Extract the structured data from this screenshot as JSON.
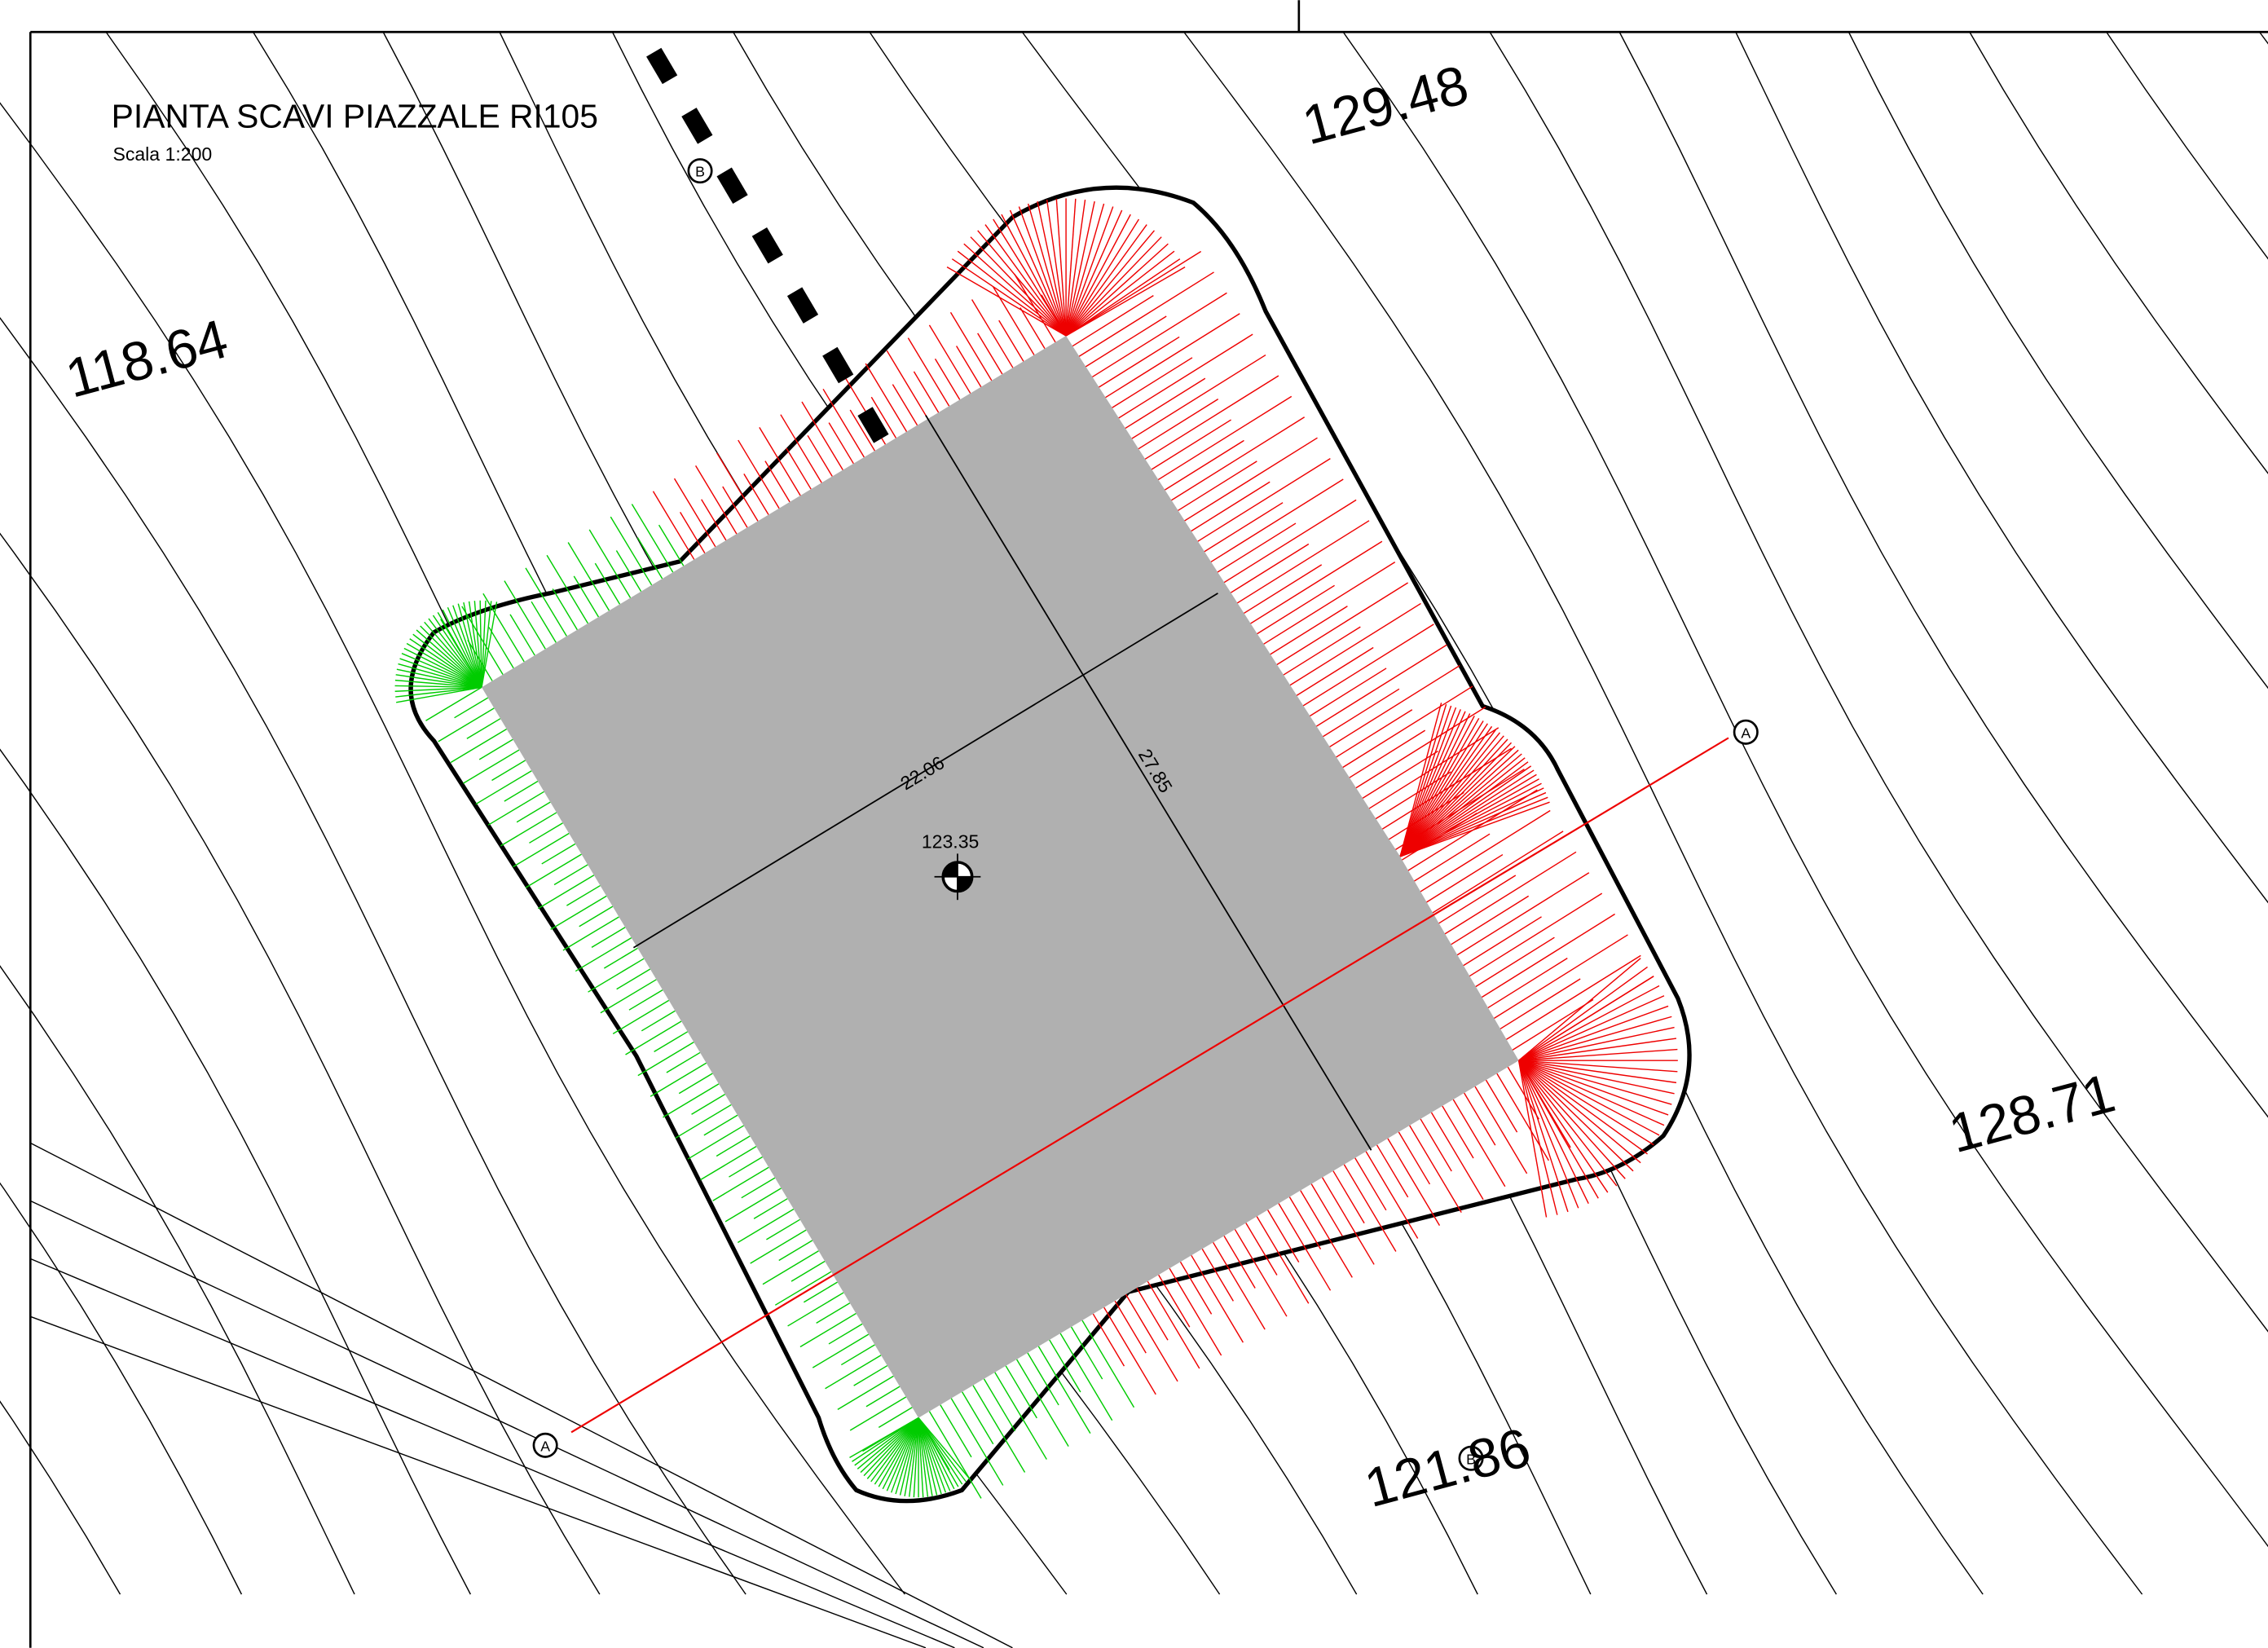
{
  "header": {
    "title": "PIANTA SCAVI PIAZZALE RI105",
    "scale": "Scala 1:200"
  },
  "elevations": [
    "118.64",
    "129.48",
    "128.71",
    "121.86"
  ],
  "dimensions": {
    "width": "22.06",
    "length": "27.85"
  },
  "platform_elevation": "123.35",
  "sections": {
    "a_start": "A",
    "a_end": "A",
    "b_start": "B",
    "b_end": "B"
  }
}
